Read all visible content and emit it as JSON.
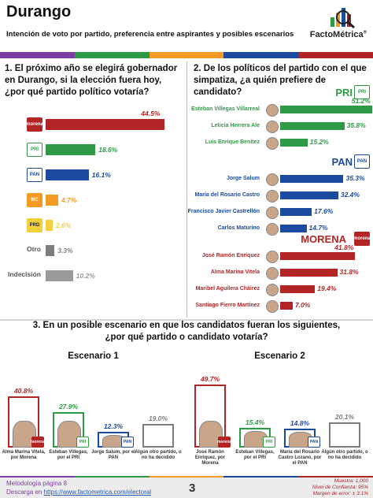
{
  "header": {
    "title": "Durango",
    "subtitle": "Intención de voto por partido, preferencia entre aspirantes y posibles escenarios",
    "brand": "FactoMétrica",
    "brand_mark": "®"
  },
  "q1": {
    "text": "1. El próximo año se elegirá gobernador en Durango, si la elección fuera hoy, ¿por qué partido político votaría?"
  },
  "q2": {
    "text": "2. De los políticos del partido con el que simpatiza, ¿a quién prefiere de candidato?"
  },
  "q3": {
    "text1": "3. En un posible escenario en que los candidatos fueran los siguientes,",
    "text2": "¿por qué partido o candidato votaría?"
  },
  "logos": {
    "morena": "morena",
    "pri": "PRI",
    "pan": "PAN",
    "mc": "MC",
    "prd": "PRD"
  },
  "section_heads": {
    "pri": "PRI",
    "pan": "PAN",
    "morena": "MORENA"
  },
  "colors": {
    "morena": "#b32525",
    "pri": "#2e9a45",
    "pan": "#1c4aa0",
    "mc": "#f59a23",
    "prd": "#f4d03f",
    "other": "#7d7d7d",
    "undecided": "#9a9a9a"
  },
  "chart_data": [
    {
      "type": "bar",
      "orientation": "horizontal",
      "title": "1. El próximo año se elegirá gobernador en Durango, si la elección fuera hoy, ¿por qué partido político votaría?",
      "categories": [
        "Morena",
        "PRI",
        "PAN",
        "MC",
        "PRD",
        "Otro",
        "Indecisión"
      ],
      "values": [
        44.5,
        18.6,
        16.1,
        4.7,
        2.6,
        3.3,
        10.2
      ],
      "labels": [
        "44.5%",
        "18.6%",
        "16.1%",
        "4.7%",
        "2.6%",
        "3.3%",
        "10.2%"
      ],
      "category_labels": [
        "",
        "",
        "",
        "",
        "",
        "Otro",
        "Indecisión"
      ]
    },
    {
      "type": "bar",
      "orientation": "horizontal",
      "title": "2. De los políticos del partido con el que simpatiza, ¿a quién prefiere de candidato?",
      "groups": [
        {
          "party": "PRI",
          "categories": [
            "Esteban Villegas Villarreal",
            "Leticia Herrera Ale",
            "Luis Enrique Benítez"
          ],
          "values": [
            51.2,
            35.8,
            15.2
          ],
          "labels": [
            "51.2%",
            "35.8%",
            "15.2%"
          ]
        },
        {
          "party": "PAN",
          "categories": [
            "Jorge Salum",
            "María del Rosario Castro",
            "Francisco Javier Castrellón",
            "Carlos Maturino"
          ],
          "values": [
            35.3,
            32.4,
            17.6,
            14.7
          ],
          "labels": [
            "35.3%",
            "32.4%",
            "17.6%",
            "14.7%"
          ]
        },
        {
          "party": "MORENA",
          "categories": [
            "José Ramón Enríquez",
            "Alma Marina Vitela",
            "Maribel Aguilera Cháirez",
            "Santiago Fierro Martínez"
          ],
          "values": [
            41.8,
            31.8,
            19.4,
            7.0
          ],
          "labels": [
            "41.8%",
            "31.8%",
            "19.4%",
            "7.0%"
          ]
        }
      ]
    },
    {
      "type": "bar",
      "orientation": "vertical",
      "title": "Escenario 1",
      "categories": [
        "Alma Marina Vitela, por Morena",
        "Esteban Villegas, por el PRI",
        "Jorge Salum, por el PAN",
        "Algún otro partido, o no ha decidido"
      ],
      "values": [
        40.8,
        27.9,
        12.3,
        19.0
      ],
      "labels": [
        "40.8%",
        "27.9%",
        "12.3%",
        "19.0%"
      ]
    },
    {
      "type": "bar",
      "orientation": "vertical",
      "title": "Escenario 2",
      "categories": [
        "José Ramón Enríquez, por Morena",
        "Esteban Villegas, por el PRI",
        "María del Rosario Castro Lozano, por el PAN",
        "Algún otro partido, o no ha decidido"
      ],
      "values": [
        49.7,
        15.4,
        14.8,
        20.1
      ],
      "labels": [
        "49.7%",
        "15.4%",
        "14.8%",
        "20.1%"
      ]
    }
  ],
  "footer": {
    "line1": "Metodología página 8",
    "line2_prefix": "Descarga en ",
    "url": "https://www.factometrica.com/electoral",
    "page": "3",
    "muestra": "Muestra: 1,000",
    "confianza": "Nivel de Confianza: 95%",
    "margen": "Margen de error: ± 3.1%"
  }
}
